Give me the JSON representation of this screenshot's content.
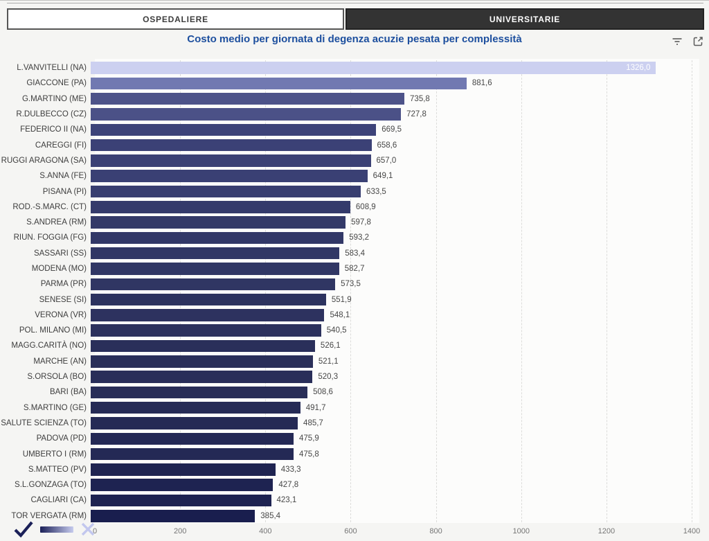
{
  "tabs": [
    {
      "label": "OSPEDALIERE",
      "selected": false
    },
    {
      "label": "UNIVERSITARIE",
      "selected": true
    }
  ],
  "header": {
    "title_color": "#1d4f9e"
  },
  "legend": {
    "check_color": "#1b2058",
    "clear_color": "#c2c7ee",
    "gradient_from": "#1b2058",
    "gradient_to": "#c6cbee"
  },
  "chart_data": {
    "type": "bar",
    "orientation": "horizontal",
    "title": "Costo medio per giornata di degenza acuzie pesata per complessità",
    "xlabel": "",
    "ylabel": "",
    "xlim": [
      0,
      1400
    ],
    "x_ticks": [
      0,
      200,
      400,
      600,
      800,
      1000,
      1200,
      1400
    ],
    "grid": true,
    "legend_position": "none",
    "value_format": "italian decimal, 1 digit",
    "rows": [
      {
        "label": "L.VANVITELLI (NA)",
        "value": 1326.0,
        "display": "1326,0",
        "color": "#ccd0f0",
        "value_inside": true
      },
      {
        "label": "GIACCONE (PA)",
        "value": 881.6,
        "display": "881,6",
        "color": "#7179b1",
        "value_inside": false
      },
      {
        "label": "G.MARTINO (ME)",
        "value": 735.8,
        "display": "735,8",
        "color": "#4d5389",
        "value_inside": false
      },
      {
        "label": "R.DULBECCO (CZ)",
        "value": 727.8,
        "display": "727,8",
        "color": "#4b5187",
        "value_inside": false
      },
      {
        "label": "FEDERICO II (NA)",
        "value": 669.5,
        "display": "669,5",
        "color": "#3d4379",
        "value_inside": false
      },
      {
        "label": "CAREGGI (FI)",
        "value": 658.6,
        "display": "658,6",
        "color": "#3b4176",
        "value_inside": false
      },
      {
        "label": "RUGGI ARAGONA (SA)",
        "value": 657.0,
        "display": "657,0",
        "color": "#3b4175",
        "value_inside": false
      },
      {
        "label": "S.ANNA (FE)",
        "value": 649.1,
        "display": "649,1",
        "color": "#3a4074",
        "value_inside": false
      },
      {
        "label": "PISANA (PI)",
        "value": 633.5,
        "display": "633,5",
        "color": "#383e70",
        "value_inside": false
      },
      {
        "label": "ROD.-S.MARC. (CT)",
        "value": 608.9,
        "display": "608,9",
        "color": "#343a6b",
        "value_inside": false
      },
      {
        "label": "S.ANDREA (RM)",
        "value": 597.8,
        "display": "597,8",
        "color": "#333968",
        "value_inside": false
      },
      {
        "label": "RIUN. FOGGIA (FG)",
        "value": 593.2,
        "display": "593,2",
        "color": "#323867",
        "value_inside": false
      },
      {
        "label": "SASSARI (SS)",
        "value": 583.4,
        "display": "583,4",
        "color": "#313765",
        "value_inside": false
      },
      {
        "label": "MODENA (MO)",
        "value": 582.7,
        "display": "582,7",
        "color": "#313765",
        "value_inside": false
      },
      {
        "label": "PARMA (PR)",
        "value": 573.5,
        "display": "573,5",
        "color": "#303663",
        "value_inside": false
      },
      {
        "label": "SENESE (SI)",
        "value": 551.9,
        "display": "551,9",
        "color": "#2d335f",
        "value_inside": false
      },
      {
        "label": "VERONA (VR)",
        "value": 548.1,
        "display": "548,1",
        "color": "#2d325f",
        "value_inside": false
      },
      {
        "label": "POL. MILANO (MI)",
        "value": 540.5,
        "display": "540,5",
        "color": "#2c315d",
        "value_inside": false
      },
      {
        "label": "MAGG.CARITÀ (NO)",
        "value": 526.1,
        "display": "526,1",
        "color": "#2a2f5a",
        "value_inside": false
      },
      {
        "label": "MARCHE (AN)",
        "value": 521.1,
        "display": "521,1",
        "color": "#2a2f59",
        "value_inside": false
      },
      {
        "label": "S.ORSOLA (BO)",
        "value": 520.3,
        "display": "520,3",
        "color": "#292e59",
        "value_inside": false
      },
      {
        "label": "BARI (BA)",
        "value": 508.6,
        "display": "508,6",
        "color": "#282d57",
        "value_inside": false
      },
      {
        "label": "S.MARTINO (GE)",
        "value": 491.7,
        "display": "491,7",
        "color": "#262b56",
        "value_inside": false
      },
      {
        "label": "SALUTE SCIENZA (TO)",
        "value": 485.7,
        "display": "485,7",
        "color": "#252a55",
        "value_inside": false
      },
      {
        "label": "PADOVA (PD)",
        "value": 475.9,
        "display": "475,9",
        "color": "#242955",
        "value_inside": false
      },
      {
        "label": "UMBERTO I (RM)",
        "value": 475.8,
        "display": "475,8",
        "color": "#242955",
        "value_inside": false
      },
      {
        "label": "S.MATTEO (PV)",
        "value": 433.3,
        "display": "433,3",
        "color": "#1f2451",
        "value_inside": false
      },
      {
        "label": "S.L.GONZAGA (TO)",
        "value": 427.8,
        "display": "427,8",
        "color": "#1e2351",
        "value_inside": false
      },
      {
        "label": "CAGLIARI (CA)",
        "value": 423.1,
        "display": "423,1",
        "color": "#1e2351",
        "value_inside": false
      },
      {
        "label": "TOR VERGATA (RM)",
        "value": 385.4,
        "display": "385,4",
        "color": "#191e4e",
        "value_inside": false
      }
    ]
  }
}
